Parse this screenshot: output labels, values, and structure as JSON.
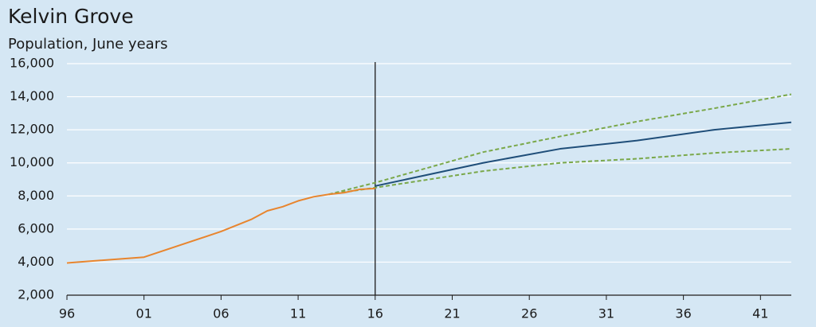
{
  "chart_data": {
    "type": "line",
    "title": "Kelvin Grove",
    "subtitle": "Population, June years",
    "xlim": [
      1996,
      2043
    ],
    "xticks": [
      {
        "value": 1996,
        "label": "96"
      },
      {
        "value": 2001,
        "label": "01"
      },
      {
        "value": 2006,
        "label": "06"
      },
      {
        "value": 2011,
        "label": "11"
      },
      {
        "value": 2016,
        "label": "16"
      },
      {
        "value": 2021,
        "label": "21"
      },
      {
        "value": 2026,
        "label": "26"
      },
      {
        "value": 2031,
        "label": "31"
      },
      {
        "value": 2036,
        "label": "36"
      },
      {
        "value": 2041,
        "label": "41"
      }
    ],
    "ylim": [
      2000,
      16000
    ],
    "yticks": [
      {
        "value": 2000,
        "label": "2,000"
      },
      {
        "value": 4000,
        "label": "4,000"
      },
      {
        "value": 6000,
        "label": "6,000"
      },
      {
        "value": 8000,
        "label": "8,000"
      },
      {
        "value": 10000,
        "label": "10,000"
      },
      {
        "value": 12000,
        "label": "12,000"
      },
      {
        "value": 14000,
        "label": "14,000"
      },
      {
        "value": 16000,
        "label": "16,000"
      }
    ],
    "grid": true,
    "vline": 2016,
    "series": [
      {
        "color": "#7aa84a",
        "dashed": true,
        "x": [
          2013,
          2016,
          2023,
          2028,
          2033,
          2038,
          2043
        ],
        "values": [
          8100,
          8800,
          10650,
          11600,
          12500,
          13300,
          14150
        ]
      },
      {
        "color": "#7aa84a",
        "dashed": true,
        "x": [
          2013,
          2016,
          2023,
          2028,
          2033,
          2038,
          2043
        ],
        "values": [
          8100,
          8500,
          9500,
          10000,
          10250,
          10600,
          10850
        ]
      },
      {
        "color": "#1f4e79",
        "dashed": false,
        "x": [
          2016,
          2023,
          2028,
          2033,
          2038,
          2043
        ],
        "values": [
          8600,
          10000,
          10850,
          11350,
          12000,
          12450
        ]
      },
      {
        "color": "#e8852e",
        "dashed": false,
        "x": [
          1996,
          2001,
          2006,
          2008,
          2009,
          2010,
          2011,
          2012,
          2013,
          2014,
          2015,
          2016
        ],
        "values": [
          3950,
          4300,
          5850,
          6600,
          7100,
          7350,
          7700,
          7950,
          8100,
          8200,
          8400,
          8450
        ]
      }
    ]
  }
}
